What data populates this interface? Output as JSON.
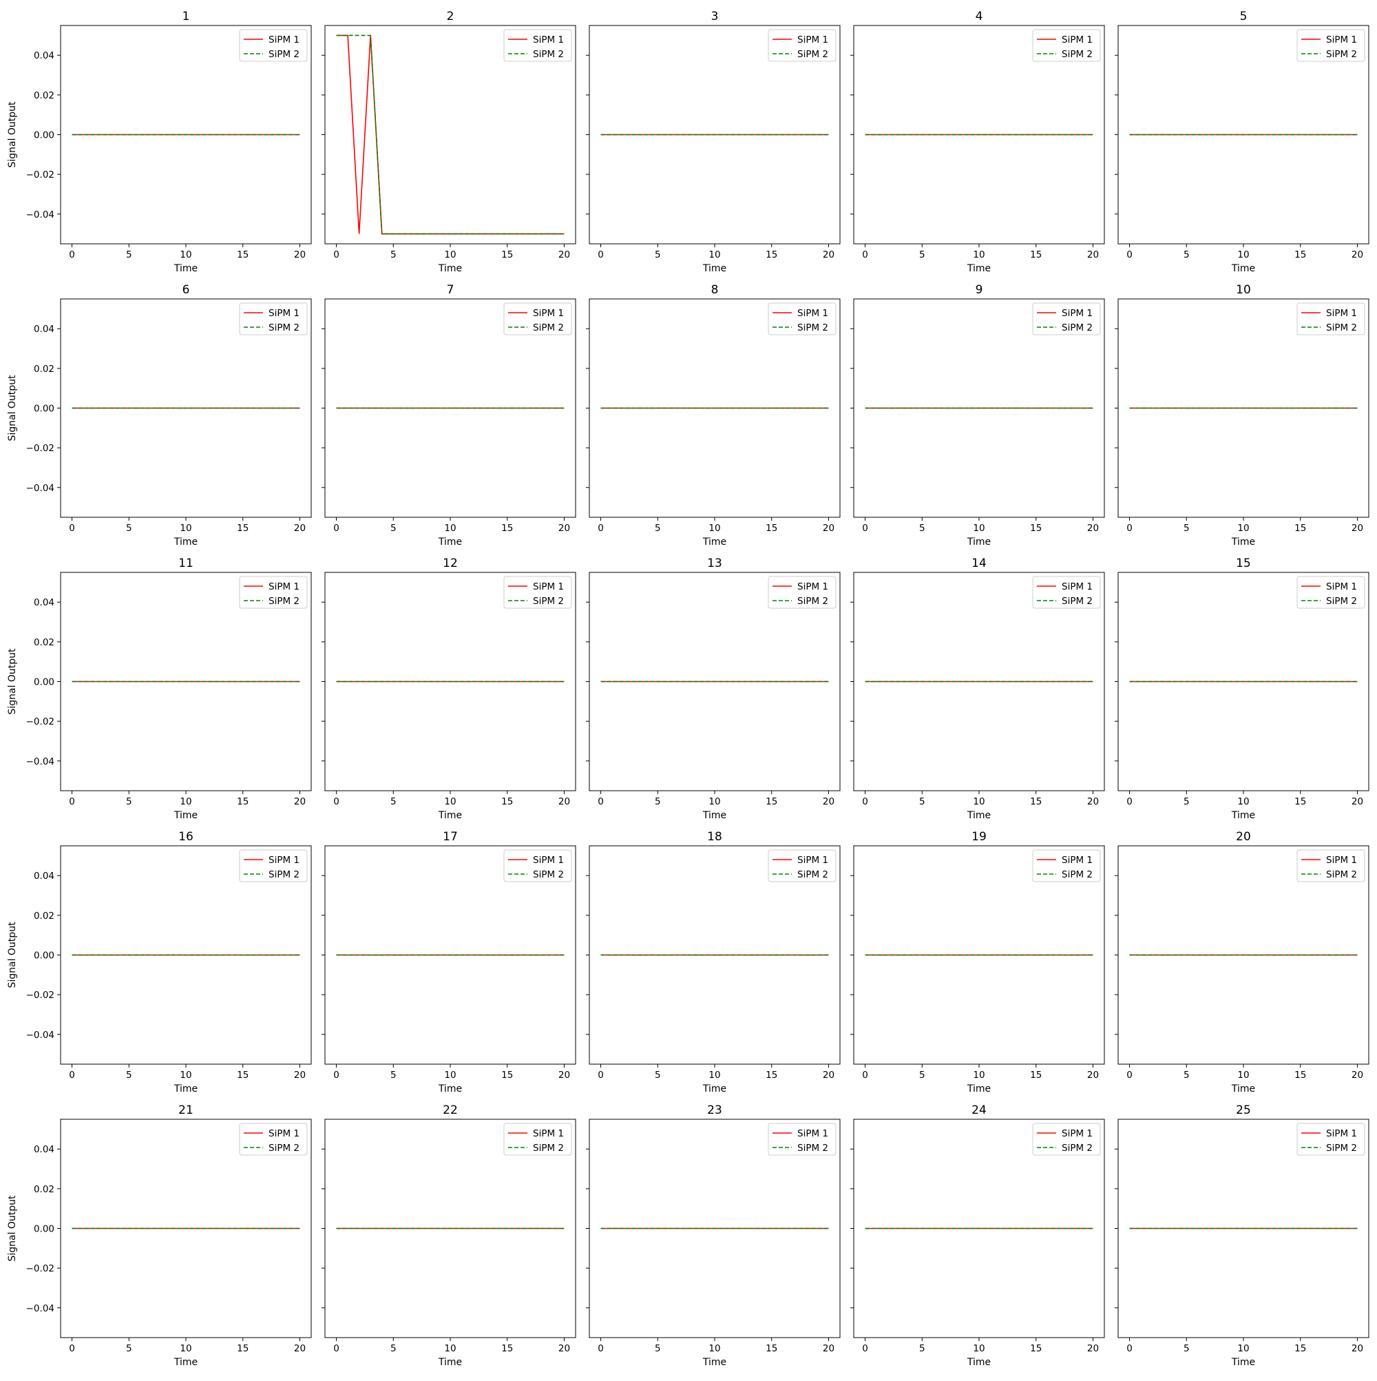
{
  "figure": {
    "colors": {
      "sipm1": "#ff0000",
      "sipm2": "#008000"
    },
    "shared": {
      "xlabel": "Time",
      "ylabel": "Signal Output",
      "xlim": [
        -1,
        21
      ],
      "ylim": [
        -0.055,
        0.055
      ],
      "xticks": [
        0,
        5,
        10,
        15,
        20
      ],
      "xtick_labels": [
        "0",
        "5",
        "10",
        "15",
        "20"
      ],
      "yticks": [
        0.04,
        0.02,
        0.0,
        -0.02,
        -0.04
      ],
      "ytick_labels": [
        "0.04",
        "0.02",
        "0.00",
        "−0.02",
        "−0.04"
      ],
      "legend_position": "upper-right",
      "legend_labels": [
        "SiPM 1",
        "SiPM 2"
      ],
      "grid": false
    }
  },
  "chart_data": [
    {
      "type": "line",
      "title": "1",
      "xlabel": "Time",
      "ylabel": "Signal Output",
      "series": [
        {
          "name": "SiPM 1",
          "x": [
            0,
            20
          ],
          "y": [
            0,
            0
          ]
        },
        {
          "name": "SiPM 2",
          "x": [
            0,
            20
          ],
          "y": [
            0,
            0
          ]
        }
      ]
    },
    {
      "type": "line",
      "title": "2",
      "xlabel": "Time",
      "ylabel": "",
      "series": [
        {
          "name": "SiPM 1",
          "x": [
            0,
            1,
            2,
            3,
            4,
            20
          ],
          "y": [
            0.05,
            0.05,
            -0.05,
            0.05,
            -0.05,
            -0.05
          ]
        },
        {
          "name": "SiPM 2",
          "x": [
            0,
            3,
            4,
            20
          ],
          "y": [
            0.05,
            0.05,
            -0.05,
            -0.05
          ]
        }
      ]
    },
    {
      "type": "line",
      "title": "3",
      "xlabel": "Time",
      "ylabel": "",
      "series": [
        {
          "name": "SiPM 1",
          "x": [
            0,
            20
          ],
          "y": [
            0,
            0
          ]
        },
        {
          "name": "SiPM 2",
          "x": [
            0,
            20
          ],
          "y": [
            0,
            0
          ]
        }
      ]
    },
    {
      "type": "line",
      "title": "4",
      "xlabel": "Time",
      "ylabel": "",
      "series": [
        {
          "name": "SiPM 1",
          "x": [
            0,
            20
          ],
          "y": [
            0,
            0
          ]
        },
        {
          "name": "SiPM 2",
          "x": [
            0,
            20
          ],
          "y": [
            0,
            0
          ]
        }
      ]
    },
    {
      "type": "line",
      "title": "5",
      "xlabel": "Time",
      "ylabel": "",
      "series": [
        {
          "name": "SiPM 1",
          "x": [
            0,
            20
          ],
          "y": [
            0,
            0
          ]
        },
        {
          "name": "SiPM 2",
          "x": [
            0,
            20
          ],
          "y": [
            0,
            0
          ]
        }
      ]
    },
    {
      "type": "line",
      "title": "6",
      "xlabel": "Time",
      "ylabel": "Signal Output",
      "series": [
        {
          "name": "SiPM 1",
          "x": [
            0,
            20
          ],
          "y": [
            0,
            0
          ]
        },
        {
          "name": "SiPM 2",
          "x": [
            0,
            20
          ],
          "y": [
            0,
            0
          ]
        }
      ]
    },
    {
      "type": "line",
      "title": "7",
      "xlabel": "Time",
      "ylabel": "",
      "series": [
        {
          "name": "SiPM 1",
          "x": [
            0,
            20
          ],
          "y": [
            0,
            0
          ]
        },
        {
          "name": "SiPM 2",
          "x": [
            0,
            20
          ],
          "y": [
            0,
            0
          ]
        }
      ]
    },
    {
      "type": "line",
      "title": "8",
      "xlabel": "Time",
      "ylabel": "",
      "series": [
        {
          "name": "SiPM 1",
          "x": [
            0,
            20
          ],
          "y": [
            0,
            0
          ]
        },
        {
          "name": "SiPM 2",
          "x": [
            0,
            20
          ],
          "y": [
            0,
            0
          ]
        }
      ]
    },
    {
      "type": "line",
      "title": "9",
      "xlabel": "Time",
      "ylabel": "",
      "series": [
        {
          "name": "SiPM 1",
          "x": [
            0,
            20
          ],
          "y": [
            0,
            0
          ]
        },
        {
          "name": "SiPM 2",
          "x": [
            0,
            20
          ],
          "y": [
            0,
            0
          ]
        }
      ]
    },
    {
      "type": "line",
      "title": "10",
      "xlabel": "Time",
      "ylabel": "",
      "series": [
        {
          "name": "SiPM 1",
          "x": [
            0,
            20
          ],
          "y": [
            0,
            0
          ]
        },
        {
          "name": "SiPM 2",
          "x": [
            0,
            20
          ],
          "y": [
            0,
            0
          ]
        }
      ]
    },
    {
      "type": "line",
      "title": "11",
      "xlabel": "Time",
      "ylabel": "Signal Output",
      "series": [
        {
          "name": "SiPM 1",
          "x": [
            0,
            20
          ],
          "y": [
            0,
            0
          ]
        },
        {
          "name": "SiPM 2",
          "x": [
            0,
            20
          ],
          "y": [
            0,
            0
          ]
        }
      ]
    },
    {
      "type": "line",
      "title": "12",
      "xlabel": "Time",
      "ylabel": "",
      "series": [
        {
          "name": "SiPM 1",
          "x": [
            0,
            20
          ],
          "y": [
            0,
            0
          ]
        },
        {
          "name": "SiPM 2",
          "x": [
            0,
            20
          ],
          "y": [
            0,
            0
          ]
        }
      ]
    },
    {
      "type": "line",
      "title": "13",
      "xlabel": "Time",
      "ylabel": "",
      "series": [
        {
          "name": "SiPM 1",
          "x": [
            0,
            20
          ],
          "y": [
            0,
            0
          ]
        },
        {
          "name": "SiPM 2",
          "x": [
            0,
            20
          ],
          "y": [
            0,
            0
          ]
        }
      ]
    },
    {
      "type": "line",
      "title": "14",
      "xlabel": "Time",
      "ylabel": "",
      "series": [
        {
          "name": "SiPM 1",
          "x": [
            0,
            20
          ],
          "y": [
            0,
            0
          ]
        },
        {
          "name": "SiPM 2",
          "x": [
            0,
            20
          ],
          "y": [
            0,
            0
          ]
        }
      ]
    },
    {
      "type": "line",
      "title": "15",
      "xlabel": "Time",
      "ylabel": "",
      "series": [
        {
          "name": "SiPM 1",
          "x": [
            0,
            20
          ],
          "y": [
            0,
            0
          ]
        },
        {
          "name": "SiPM 2",
          "x": [
            0,
            20
          ],
          "y": [
            0,
            0
          ]
        }
      ]
    },
    {
      "type": "line",
      "title": "16",
      "xlabel": "Time",
      "ylabel": "Signal Output",
      "series": [
        {
          "name": "SiPM 1",
          "x": [
            0,
            20
          ],
          "y": [
            0,
            0
          ]
        },
        {
          "name": "SiPM 2",
          "x": [
            0,
            20
          ],
          "y": [
            0,
            0
          ]
        }
      ]
    },
    {
      "type": "line",
      "title": "17",
      "xlabel": "Time",
      "ylabel": "",
      "series": [
        {
          "name": "SiPM 1",
          "x": [
            0,
            20
          ],
          "y": [
            0,
            0
          ]
        },
        {
          "name": "SiPM 2",
          "x": [
            0,
            20
          ],
          "y": [
            0,
            0
          ]
        }
      ]
    },
    {
      "type": "line",
      "title": "18",
      "xlabel": "Time",
      "ylabel": "",
      "series": [
        {
          "name": "SiPM 1",
          "x": [
            0,
            20
          ],
          "y": [
            0,
            0
          ]
        },
        {
          "name": "SiPM 2",
          "x": [
            0,
            20
          ],
          "y": [
            0,
            0
          ]
        }
      ]
    },
    {
      "type": "line",
      "title": "19",
      "xlabel": "Time",
      "ylabel": "",
      "series": [
        {
          "name": "SiPM 1",
          "x": [
            0,
            20
          ],
          "y": [
            0,
            0
          ]
        },
        {
          "name": "SiPM 2",
          "x": [
            0,
            20
          ],
          "y": [
            0,
            0
          ]
        }
      ]
    },
    {
      "type": "line",
      "title": "20",
      "xlabel": "Time",
      "ylabel": "",
      "series": [
        {
          "name": "SiPM 1",
          "x": [
            0,
            20
          ],
          "y": [
            0,
            0
          ]
        },
        {
          "name": "SiPM 2",
          "x": [
            0,
            20
          ],
          "y": [
            0,
            0
          ]
        }
      ]
    },
    {
      "type": "line",
      "title": "21",
      "xlabel": "Time",
      "ylabel": "Signal Output",
      "series": [
        {
          "name": "SiPM 1",
          "x": [
            0,
            20
          ],
          "y": [
            0,
            0
          ]
        },
        {
          "name": "SiPM 2",
          "x": [
            0,
            20
          ],
          "y": [
            0,
            0
          ]
        }
      ]
    },
    {
      "type": "line",
      "title": "22",
      "xlabel": "Time",
      "ylabel": "",
      "series": [
        {
          "name": "SiPM 1",
          "x": [
            0,
            20
          ],
          "y": [
            0,
            0
          ]
        },
        {
          "name": "SiPM 2",
          "x": [
            0,
            20
          ],
          "y": [
            0,
            0
          ]
        }
      ]
    },
    {
      "type": "line",
      "title": "23",
      "xlabel": "Time",
      "ylabel": "",
      "series": [
        {
          "name": "SiPM 1",
          "x": [
            0,
            20
          ],
          "y": [
            0,
            0
          ]
        },
        {
          "name": "SiPM 2",
          "x": [
            0,
            20
          ],
          "y": [
            0,
            0
          ]
        }
      ]
    },
    {
      "type": "line",
      "title": "24",
      "xlabel": "Time",
      "ylabel": "",
      "series": [
        {
          "name": "SiPM 1",
          "x": [
            0,
            20
          ],
          "y": [
            0,
            0
          ]
        },
        {
          "name": "SiPM 2",
          "x": [
            0,
            20
          ],
          "y": [
            0,
            0
          ]
        }
      ]
    },
    {
      "type": "line",
      "title": "25",
      "xlabel": "Time",
      "ylabel": "",
      "series": [
        {
          "name": "SiPM 1",
          "x": [
            0,
            20
          ],
          "y": [
            0,
            0
          ]
        },
        {
          "name": "SiPM 2",
          "x": [
            0,
            20
          ],
          "y": [
            0,
            0
          ]
        }
      ]
    }
  ]
}
